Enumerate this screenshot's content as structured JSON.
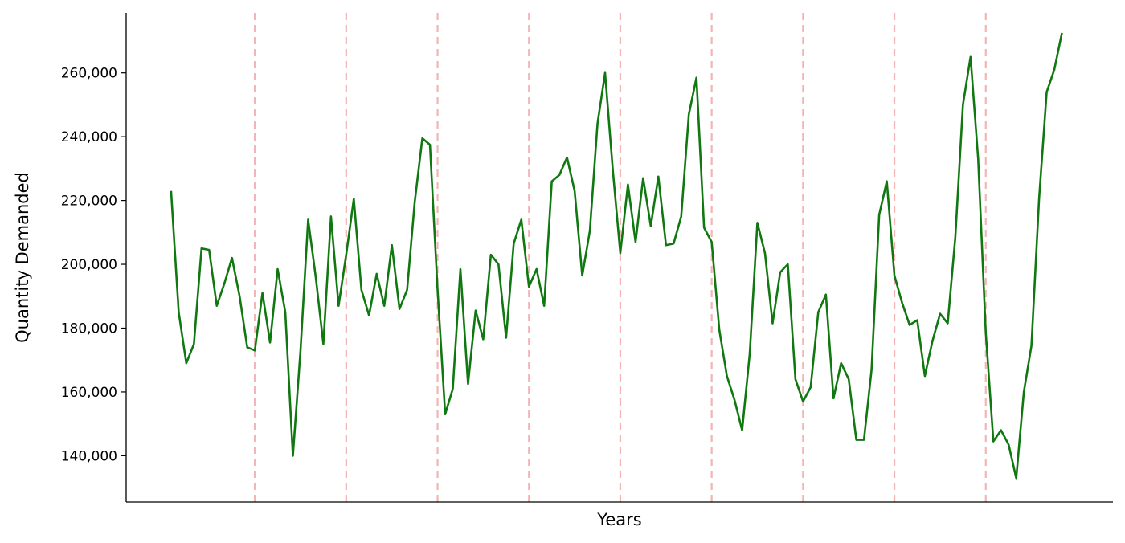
{
  "chart_data": {
    "type": "line",
    "title": "",
    "xlabel": "Years",
    "ylabel": "Quantity Demanded",
    "ylim": [
      125500,
      278800
    ],
    "yticks": [
      140000,
      160000,
      180000,
      200000,
      220000,
      240000,
      260000
    ],
    "ytick_labels": [
      "140,000",
      "160,000",
      "180,000",
      "200,000",
      "220,000",
      "240,000",
      "260,000"
    ],
    "xlim": [
      -5.9,
      123.7
    ],
    "grid": false,
    "line_color": "#107810",
    "divider_color": "#f4b4b4",
    "year_dividers": [
      11,
      23,
      35,
      47,
      59,
      71,
      83,
      95,
      107
    ],
    "series": [
      {
        "name": "",
        "x": [
          0,
          1,
          2,
          3,
          4,
          5,
          6,
          7,
          8,
          9,
          10,
          11,
          12,
          13,
          14,
          15,
          16,
          17,
          18,
          19,
          20,
          21,
          22,
          23,
          24,
          25,
          26,
          27,
          28,
          29,
          30,
          31,
          32,
          33,
          34,
          35,
          36,
          37,
          38,
          39,
          40,
          41,
          42,
          43,
          44,
          45,
          46,
          47,
          48,
          49,
          50,
          51,
          52,
          53,
          54,
          55,
          56,
          57,
          58,
          59,
          60,
          61,
          62,
          63,
          64,
          65,
          66,
          67,
          68,
          69,
          70,
          71,
          72,
          73,
          74,
          75,
          76,
          77,
          78,
          79,
          80,
          81,
          82,
          83,
          84,
          85,
          86,
          87,
          88,
          89,
          90,
          91,
          92,
          93,
          94,
          95,
          96,
          97,
          98,
          99,
          100,
          101,
          102,
          103,
          104,
          105,
          106,
          107,
          108,
          109,
          110,
          111,
          112,
          113,
          114,
          115,
          116,
          117
        ],
        "values": [
          223000,
          185000,
          169000,
          175000,
          205000,
          204500,
          187000,
          194000,
          202000,
          190000,
          174000,
          173000,
          191000,
          175500,
          198500,
          185000,
          140000,
          173000,
          214000,
          196000,
          175000,
          215000,
          187000,
          203000,
          220500,
          192000,
          184000,
          197000,
          187000,
          206000,
          186000,
          192000,
          219500,
          239500,
          237500,
          192000,
          153000,
          161000,
          198500,
          162500,
          185500,
          176500,
          203000,
          200000,
          177000,
          206500,
          214000,
          193000,
          198500,
          187000,
          226000,
          228000,
          233500,
          223000,
          196500,
          210500,
          244000,
          260000,
          230000,
          203500,
          225000,
          207000,
          227000,
          212000,
          227500,
          206000,
          206500,
          215000,
          247000,
          258500,
          211500,
          207000,
          179500,
          165000,
          157500,
          148000,
          172000,
          213000,
          203500,
          181500,
          197500,
          200000,
          164000,
          157000,
          161500,
          185000,
          190500,
          158000,
          169000,
          164000,
          145000,
          145000,
          167000,
          215500,
          226000,
          196500,
          188000,
          181000,
          182500,
          165000,
          176000,
          184500,
          181500,
          208500,
          250000,
          265000,
          233000,
          178500,
          144500,
          148000,
          143500,
          133000,
          160000,
          174500,
          220500,
          254000,
          261000,
          272500
        ]
      }
    ]
  }
}
